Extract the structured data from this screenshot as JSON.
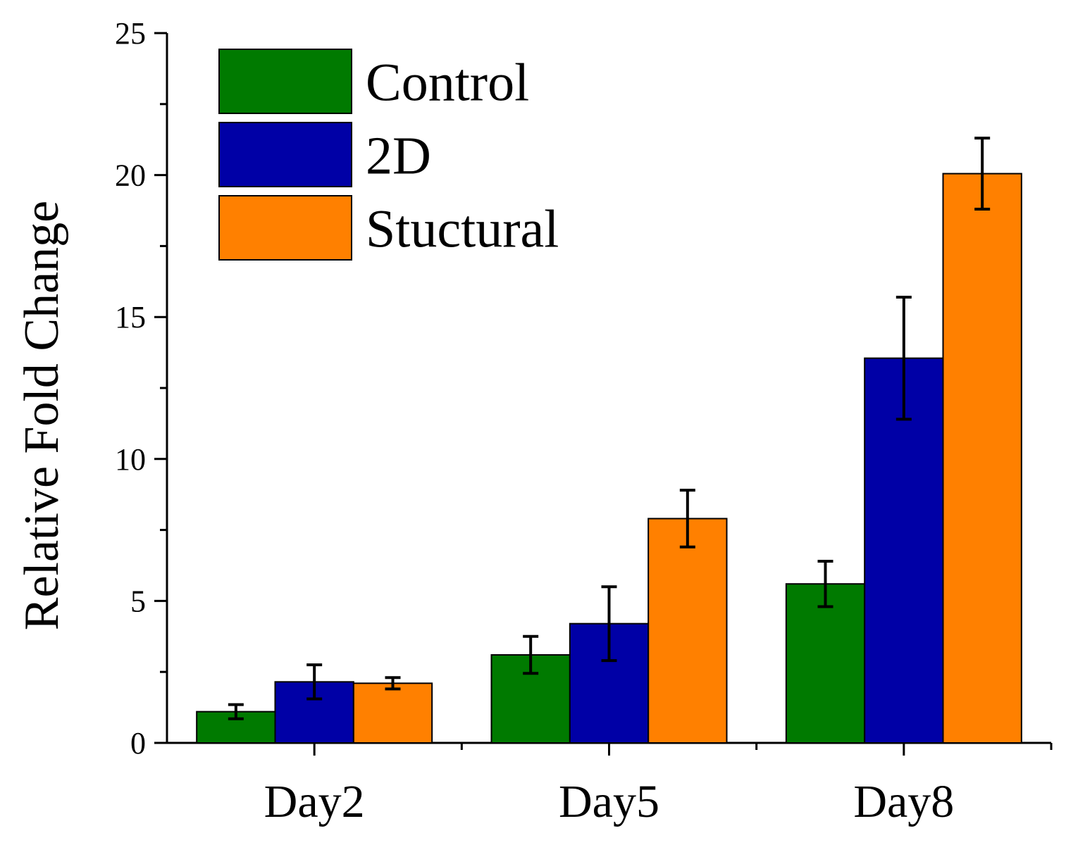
{
  "chart_data": {
    "type": "bar",
    "title": "",
    "xlabel": "",
    "ylabel": "Relative Fold Change",
    "ylim": [
      0,
      25
    ],
    "yticks": [
      0,
      5,
      10,
      15,
      20,
      25
    ],
    "categories": [
      "Day2",
      "Day5",
      "Day8"
    ],
    "legend_position": "top-left",
    "grid": false,
    "series": [
      {
        "name": "Control",
        "color": "#007A00",
        "values": [
          1.1,
          3.1,
          5.6
        ],
        "errors": [
          0.25,
          0.65,
          0.8
        ]
      },
      {
        "name": "2D",
        "color": "#0000A6",
        "values": [
          2.15,
          4.2,
          13.55
        ],
        "errors": [
          0.6,
          1.3,
          2.15
        ]
      },
      {
        "name": "Stuctural",
        "color": "#FF8000",
        "values": [
          2.1,
          7.9,
          20.05
        ],
        "errors": [
          0.2,
          1.0,
          1.25
        ]
      }
    ]
  }
}
